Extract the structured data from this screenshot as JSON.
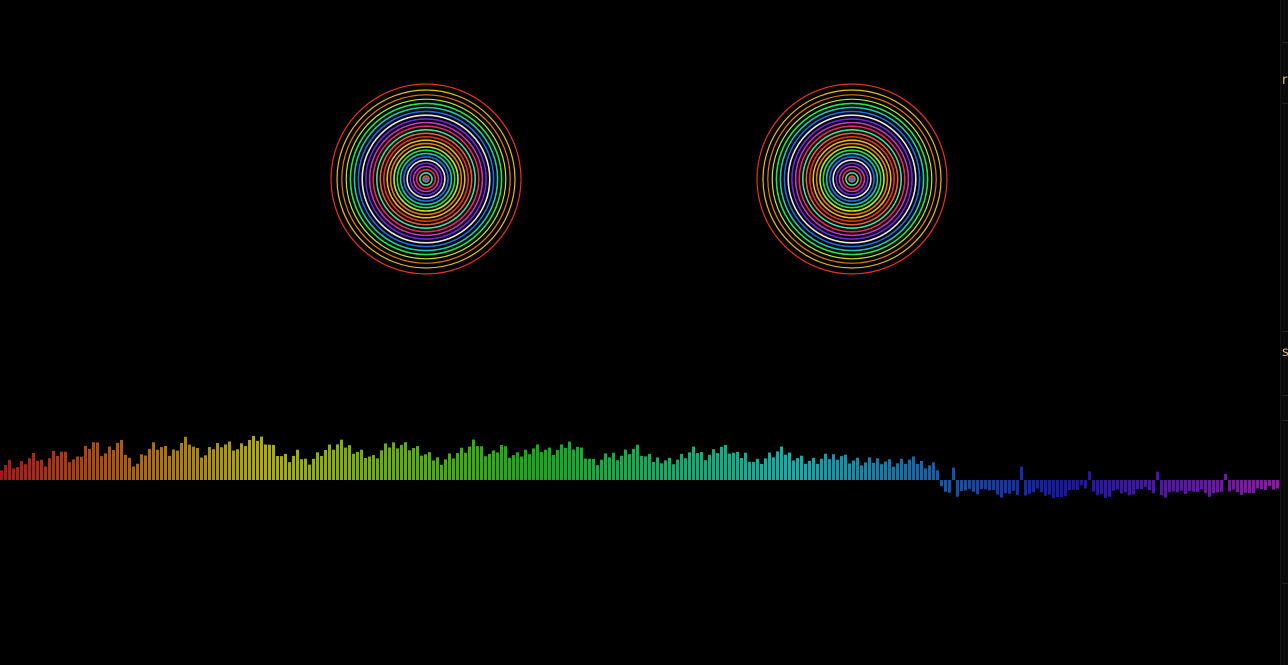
{
  "visualizer": {
    "background": "#000000",
    "rings": {
      "count": 26,
      "colors": [
        "#ff3b1f",
        "#ffd21a",
        "#ff8a00",
        "#d7ff2a",
        "#22ff55",
        "#19e0c8",
        "#1f7bff",
        "#ffffff",
        "#7a2cff",
        "#e03ad6",
        "#ff2d6f",
        "#36ffb0",
        "#ff6a3d"
      ]
    },
    "spectrum": {
      "bars": 320,
      "levels": [
        0.35,
        0.42,
        0.3,
        0.48,
        0.55,
        0.4,
        0.62,
        0.7,
        0.5,
        0.45,
        0.8,
        0.95,
        0.6,
        0.75,
        0.92,
        0.5,
        0.4,
        0.68,
        0.82,
        0.76,
        0.6,
        0.88,
        1.0,
        0.7,
        0.55,
        0.78,
        0.9,
        0.85,
        0.72,
        0.92,
        0.98,
        1.0,
        0.8,
        0.58,
        0.5,
        0.62,
        0.45,
        0.55,
        0.7,
        0.78,
        0.86,
        0.8,
        0.7,
        0.62,
        0.5,
        0.72,
        0.85,
        0.88,
        0.82,
        0.74,
        0.6,
        0.52,
        0.48,
        0.58,
        0.66,
        0.74,
        0.9,
        0.7,
        0.62,
        0.85,
        0.6,
        0.55,
        0.7,
        0.8,
        0.75,
        0.66,
        0.72,
        0.88,
        0.82,
        0.6,
        0.4,
        0.48,
        0.62,
        0.58,
        0.7,
        0.78,
        0.55,
        0.48,
        0.52,
        0.46,
        0.5,
        0.62,
        0.72,
        0.58,
        0.66,
        0.8,
        0.7,
        0.55,
        0.62,
        0.42,
        0.5,
        0.6,
        0.7,
        0.62,
        0.55,
        0.48,
        0.44,
        0.5,
        0.56,
        0.62,
        0.5,
        0.45,
        0.4,
        0.46,
        0.5,
        0.42,
        0.4,
        0.48,
        0.44,
        0.4,
        0.36,
        0.3
      ],
      "negative_levels": [
        0.2,
        0.55,
        0.3,
        0.42,
        0.25,
        0.5,
        0.38,
        0.6,
        0.28,
        0.45,
        0.62,
        0.35,
        0.2,
        0.4,
        0.58,
        0.3,
        0.48,
        0.25,
        0.36,
        0.52,
        0.3,
        0.44,
        0.32,
        0.5,
        0.28,
        0.38,
        0.46,
        0.3,
        0.22,
        0.4
      ],
      "negative_start": 0.735,
      "hue_start": 0,
      "hue_end": 290
    }
  },
  "side_panel": {
    "glyphs": [
      "r",
      "s"
    ]
  }
}
